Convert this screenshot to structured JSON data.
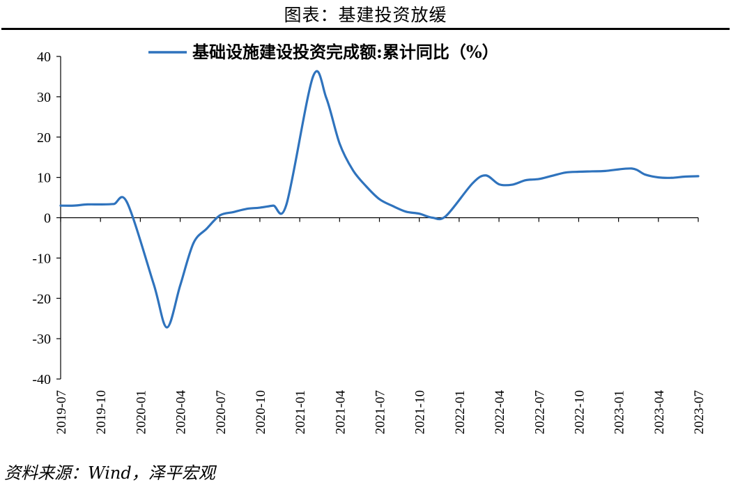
{
  "header": {
    "title": "图表：基建投资放缓"
  },
  "footer": {
    "source": "资料来源：Wind，泽平宏观"
  },
  "chart_data": {
    "type": "line",
    "title": "",
    "xlabel": "",
    "ylabel": "",
    "ylim": [
      -40,
      40
    ],
    "yticks": [
      -40,
      -30,
      -20,
      -10,
      0,
      10,
      20,
      30,
      40
    ],
    "ytick_labels": [
      "-40",
      "-30",
      "-20",
      "-10",
      "0",
      "10",
      "20",
      "30",
      "40"
    ],
    "xtick_labels": [
      "2019-07",
      "2019-10",
      "2020-01",
      "2020-04",
      "2020-07",
      "2020-10",
      "2021-01",
      "2021-04",
      "2021-07",
      "2021-10",
      "2022-01",
      "2022-04",
      "2022-07",
      "2022-10",
      "2023-01",
      "2023-04",
      "2023-07"
    ],
    "grid": false,
    "legend_position": "top-center",
    "series": [
      {
        "name": "基础设施建设投资完成额:累计同比（%）",
        "color": "#2f73bd",
        "x": [
          "2019-07",
          "2019-08",
          "2019-09",
          "2019-10",
          "2019-11",
          "2019-12",
          "2020-01",
          "2020-02",
          "2020-03",
          "2020-04",
          "2020-05",
          "2020-06",
          "2020-07",
          "2020-08",
          "2020-09",
          "2020-10",
          "2020-11",
          "2020-12",
          "2021-01",
          "2021-02",
          "2021-03",
          "2021-04",
          "2021-05",
          "2021-06",
          "2021-07",
          "2021-08",
          "2021-09",
          "2021-10",
          "2021-11",
          "2021-12",
          "2022-01",
          "2022-02",
          "2022-03",
          "2022-04",
          "2022-05",
          "2022-06",
          "2022-07",
          "2022-08",
          "2022-09",
          "2022-10",
          "2022-11",
          "2022-12",
          "2023-01",
          "2023-02",
          "2023-03",
          "2023-04",
          "2023-05",
          "2023-06",
          "2023-07"
        ],
        "values": [
          3.0,
          3.0,
          3.3,
          3.3,
          3.4,
          3.8,
          null,
          -16.4,
          -27.2,
          -16.8,
          -6.3,
          -2.7,
          0.6,
          1.4,
          2.2,
          2.5,
          3.0,
          3.3,
          null,
          35.0,
          29.7,
          18.4,
          11.8,
          7.8,
          4.6,
          2.9,
          1.5,
          1.0,
          0.0,
          0.4,
          null,
          8.5,
          10.5,
          8.3,
          8.2,
          9.3,
          9.6,
          10.4,
          11.2,
          11.4,
          11.5,
          11.6,
          null,
          12.2,
          10.7,
          10.0,
          9.9,
          10.2,
          10.3
        ]
      }
    ]
  }
}
